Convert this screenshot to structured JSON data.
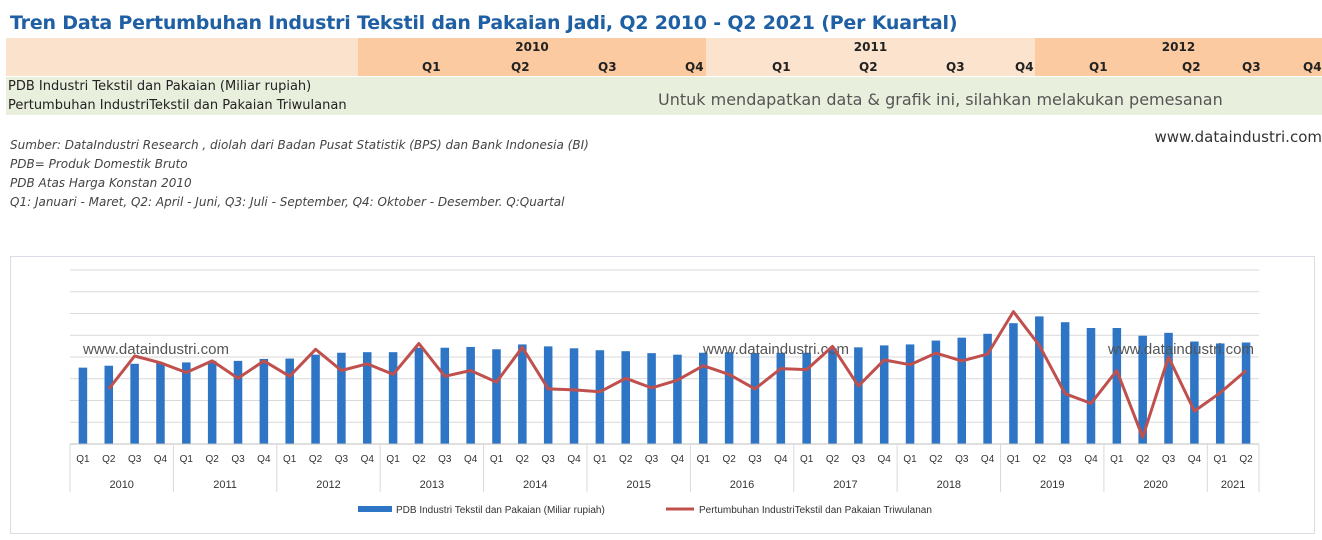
{
  "title": "Tren Data Pertumbuhan Industri Tekstil dan Pakaian Jadi, Q2 2010 - Q2 2021 (Per Kuartal)",
  "table": {
    "years": [
      "2010",
      "2011",
      "2012"
    ],
    "quarters": [
      "Q1",
      "Q2",
      "Q3",
      "Q4"
    ],
    "rows": [
      "PDB Industri Tekstil dan Pakaian (Miliar rupiah)",
      "Pertumbuhan IndustriTekstil dan Pakaian Triwulanan"
    ],
    "order_message": "Untuk mendapatkan data & grafik ini, silahkan melakukan pemesanan"
  },
  "website": "www.dataindustri.com",
  "notes": [
    "Sumber: DataIndustri Research , diolah dari Badan Pusat Statistik (BPS) dan Bank Indonesia (BI)",
    "PDB= Produk Domestik Bruto",
    "PDB Atas Harga Konstan 2010",
    "Q1: Januari - Maret, Q2: April - Juni, Q3: Juli - September, Q4: Oktober - Desember. Q:Quartal"
  ],
  "chart_data": {
    "type": "bar+line",
    "watermark": "www.dataindustri.com",
    "years": [
      "2010",
      "2011",
      "2012",
      "2013",
      "2014",
      "2015",
      "2016",
      "2017",
      "2018",
      "2019",
      "2020",
      "2021"
    ],
    "categories": [
      "Q1",
      "Q2",
      "Q3",
      "Q4",
      "Q1",
      "Q2",
      "Q3",
      "Q4",
      "Q1",
      "Q2",
      "Q3",
      "Q4",
      "Q1",
      "Q2",
      "Q3",
      "Q4",
      "Q1",
      "Q2",
      "Q3",
      "Q4",
      "Q1",
      "Q2",
      "Q3",
      "Q4",
      "Q1",
      "Q2",
      "Q3",
      "Q4",
      "Q1",
      "Q2",
      "Q3",
      "Q4",
      "Q1",
      "Q2",
      "Q3",
      "Q4",
      "Q1",
      "Q2",
      "Q3",
      "Q4",
      "Q1",
      "Q2",
      "Q3",
      "Q4",
      "Q1",
      "Q2"
    ],
    "ylim": [
      0,
      9
    ],
    "grid": true,
    "legend_position": "bottom",
    "series": [
      {
        "name": "PDB Industri Tekstil dan Pakaian (Miliar rupiah)",
        "type": "bar",
        "color": "#2e75c6",
        "values": [
          3.95,
          4.05,
          4.15,
          4.2,
          4.22,
          4.3,
          4.3,
          4.4,
          4.42,
          4.62,
          4.72,
          4.75,
          4.75,
          4.98,
          4.98,
          5.02,
          4.9,
          5.15,
          5.05,
          4.95,
          4.85,
          4.8,
          4.7,
          4.62,
          4.72,
          4.75,
          4.7,
          4.72,
          4.72,
          4.95,
          5.0,
          5.1,
          5.15,
          5.35,
          5.5,
          5.7,
          6.25,
          6.6,
          6.3,
          6.0,
          6.0,
          5.6,
          5.75,
          5.3,
          5.2,
          5.25
        ]
      },
      {
        "name": "Pertumbuhan IndustriTekstil dan Pakaian Triwulanan",
        "type": "line",
        "color": "#c0504d",
        "values": [
          null,
          2.85,
          4.55,
          4.2,
          3.7,
          4.3,
          3.4,
          4.3,
          3.5,
          4.9,
          3.8,
          4.15,
          3.6,
          5.2,
          3.5,
          3.8,
          3.2,
          5.0,
          2.85,
          2.8,
          2.7,
          3.4,
          2.9,
          3.3,
          4.05,
          3.6,
          2.85,
          3.9,
          3.85,
          5.05,
          3.0,
          4.35,
          4.1,
          4.7,
          4.3,
          4.65,
          6.85,
          5.1,
          2.6,
          2.1,
          3.8,
          0.35,
          4.5,
          1.7,
          2.65,
          3.8
        ]
      }
    ]
  }
}
